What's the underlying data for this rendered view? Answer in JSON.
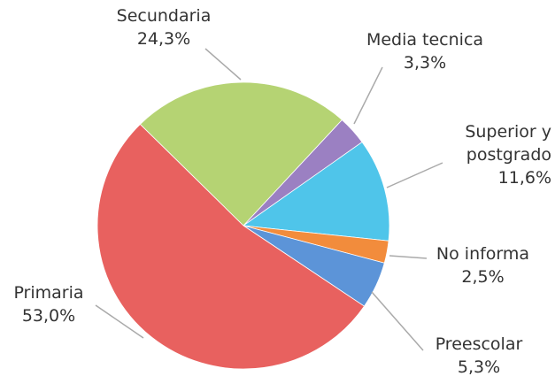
{
  "chart_data": {
    "type": "pie",
    "categories": [
      "Secundaria",
      "Media tecnica",
      "Superior y postgrado",
      "No informa",
      "Preescolar",
      "Primaria"
    ],
    "values": [
      24.3,
      3.3,
      11.6,
      2.5,
      5.3,
      53.0
    ],
    "value_labels": [
      "24,3%",
      "3,3%",
      "11,6%",
      "2,5%",
      "5,3%",
      "53,0%"
    ],
    "colors": [
      "#b5d373",
      "#9b80c2",
      "#4fc5ea",
      "#f28c3c",
      "#5c94d8",
      "#e8615f"
    ]
  }
}
